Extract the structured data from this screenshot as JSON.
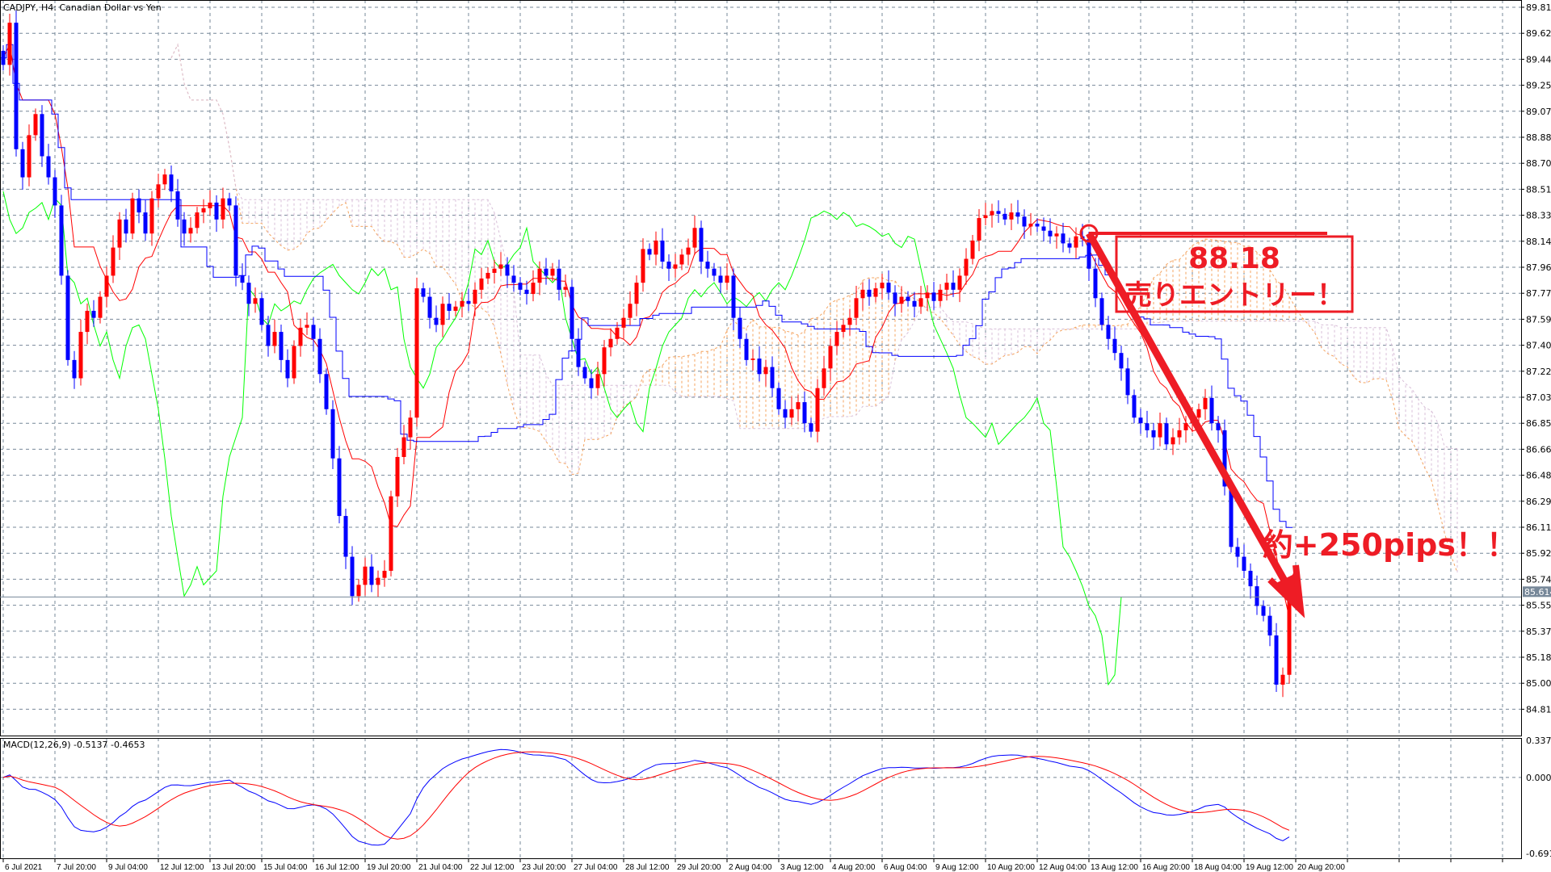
{
  "header": {
    "title": "CADJPY, H4:  Canadian Dollar vs Yen"
  },
  "indicator": {
    "macd_label": "MACD(12,26,9) -0.5137 -0.4653"
  },
  "price_axis": {
    "labels": [
      "89.810",
      "89.625",
      "89.440",
      "89.255",
      "89.070",
      "88.885",
      "88.700",
      "88.515",
      "88.330",
      "88.145",
      "87.960",
      "87.775",
      "87.590",
      "87.405",
      "87.220",
      "87.035",
      "86.850",
      "86.665",
      "86.480",
      "86.295",
      "86.110",
      "85.925",
      "85.740",
      "85.555",
      "85.370",
      "85.185",
      "85.000",
      "84.815"
    ],
    "current_price": "85.614"
  },
  "macd_axis": {
    "labels": [
      "0.3374",
      "0.0000",
      "-0.6911"
    ]
  },
  "time_axis": {
    "labels": [
      "6 Jul 2021",
      "7 Jul 20:00",
      "9 Jul 04:00",
      "12 Jul 12:00",
      "13 Jul 20:00",
      "15 Jul 04:00",
      "16 Jul 12:00",
      "19 Jul 20:00",
      "21 Jul 04:00",
      "22 Jul 12:00",
      "23 Jul 20:00",
      "27 Jul 04:00",
      "28 Jul 12:00",
      "29 Jul 20:00",
      "2 Aug 04:00",
      "3 Aug 12:00",
      "4 Aug 20:00",
      "6 Aug 04:00",
      "9 Aug 12:00",
      "10 Aug 20:00",
      "12 Aug 04:00",
      "13 Aug 12:00",
      "16 Aug 20:00",
      "18 Aug 04:00",
      "19 Aug 12:00",
      "20 Aug 20:00"
    ]
  },
  "annotations": {
    "entry_price": "88.18",
    "entry_text": "売りエントリー！",
    "profit_text": "約+250pips！！"
  },
  "colors": {
    "bull": "#ff0000",
    "bear": "#0000ff",
    "tenkan": "#ff0000",
    "kijun": "#0000ff",
    "chikou": "#00ff00",
    "senkou_a": "#f4a460",
    "senkou_b": "#d8bfd8",
    "macd_main": "#0000ff",
    "macd_signal": "#ff0000",
    "grid": "#778899",
    "annotation": "#ee1c25"
  },
  "chart_data": {
    "type": "candlestick",
    "symbol": "CADJPY",
    "timeframe": "H4",
    "ylim": [
      84.815,
      89.81
    ],
    "macd_ylim": [
      -0.6911,
      0.3374
    ],
    "indicators": [
      "Ichimoku",
      "MACD(12,26,9)"
    ],
    "grid": true,
    "entry_price": 88.18,
    "closes": [
      89.4,
      89.7,
      88.8,
      88.6,
      88.9,
      89.05,
      88.75,
      88.6,
      88.4,
      87.9,
      87.3,
      87.17,
      87.5,
      87.65,
      87.6,
      87.75,
      87.9,
      88.1,
      88.3,
      88.2,
      88.45,
      88.35,
      88.2,
      88.45,
      88.55,
      88.62,
      88.5,
      88.3,
      88.2,
      88.24,
      88.35,
      88.38,
      88.42,
      88.3,
      88.45,
      88.4,
      87.9,
      87.85,
      87.7,
      87.74,
      87.55,
      87.4,
      87.5,
      87.3,
      87.17,
      87.4,
      87.53,
      87.55,
      87.45,
      87.2,
      86.95,
      86.6,
      86.19,
      85.9,
      85.62,
      85.7,
      85.83,
      85.7,
      85.75,
      85.8,
      86.33,
      86.61,
      86.75,
      86.89,
      87.81,
      87.75,
      87.6,
      87.55,
      87.7,
      87.65,
      87.68,
      87.72,
      87.7,
      87.8,
      87.88,
      87.92,
      87.95,
      87.98,
      87.9,
      87.85,
      87.8,
      87.77,
      87.85,
      87.95,
      87.9,
      87.95,
      87.8,
      87.82,
      87.45,
      87.25,
      87.17,
      87.1,
      87.2,
      87.39,
      87.45,
      87.53,
      87.6,
      87.7,
      87.85,
      88.09,
      88.05,
      88.15,
      88.0,
      87.95,
      87.98,
      88.05,
      88.1,
      88.24,
      88.0,
      87.95,
      87.9,
      87.85,
      87.9,
      87.6,
      87.45,
      87.3,
      87.31,
      87.2,
      87.25,
      87.1,
      86.95,
      86.89,
      86.95,
      87.0,
      86.85,
      86.79,
      87.1,
      87.24,
      87.4,
      87.5,
      87.55,
      87.6,
      87.74,
      87.8,
      87.75,
      87.81,
      87.85,
      87.78,
      87.7,
      87.75,
      87.72,
      87.68,
      87.74,
      87.78,
      87.72,
      87.8,
      87.85,
      87.8,
      87.9,
      88.02,
      88.15,
      88.31,
      88.33,
      88.36,
      88.34,
      88.3,
      88.35,
      88.32,
      88.25,
      88.27,
      88.25,
      88.22,
      88.18,
      88.2,
      88.13,
      88.1,
      88.18,
      88.16,
      87.95,
      87.74,
      87.55,
      87.45,
      87.35,
      87.24,
      87.05,
      86.89,
      86.85,
      86.8,
      86.75,
      86.85,
      86.7,
      86.75,
      86.8,
      86.85,
      86.89,
      86.95,
      87.03,
      86.85,
      86.8,
      86.4,
      85.97,
      85.9,
      85.8,
      85.69,
      85.55,
      85.48,
      85.34,
      84.99,
      85.06,
      85.614
    ]
  }
}
